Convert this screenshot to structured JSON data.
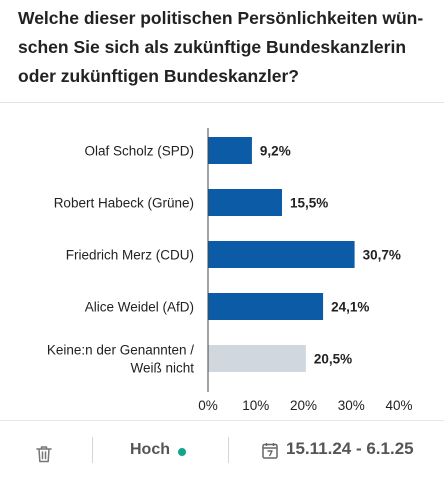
{
  "title": "Welche dieser politischen Persönlichkeiten wün-schen Sie sich als zukünftige Bundeskanzlerin oder zukünftigen Bundeskanzler?",
  "footer": {
    "level_label": "Hoch",
    "date_range": "15.11.24 - 6.1.25",
    "icons": {
      "delete": "trash-icon",
      "status": "status-dot-icon",
      "calendar": "calendar-icon"
    },
    "status_color": "#14a38b"
  },
  "chart_data": {
    "type": "bar",
    "orientation": "horizontal",
    "categories": [
      "Olaf Scholz (SPD)",
      "Robert Habeck (Grüne)",
      "Friedrich Merz (CDU)",
      "Alice Weidel (AfD)",
      "Keine:n der Genannten / Weiß nicht"
    ],
    "values": [
      9.2,
      15.5,
      30.7,
      24.1,
      20.5
    ],
    "value_labels": [
      "9,2%",
      "15,5%",
      "30,7%",
      "24,1%",
      "20,5%"
    ],
    "colors": [
      "#0b5ba6",
      "#0b5ba6",
      "#0b5ba6",
      "#0b5ba6",
      "#d1d7de"
    ],
    "xlim": [
      0,
      40
    ],
    "xticks": [
      0,
      10,
      20,
      30,
      40
    ],
    "xtick_labels": [
      "0%",
      "10%",
      "20%",
      "30%",
      "40%"
    ],
    "grid": false
  }
}
